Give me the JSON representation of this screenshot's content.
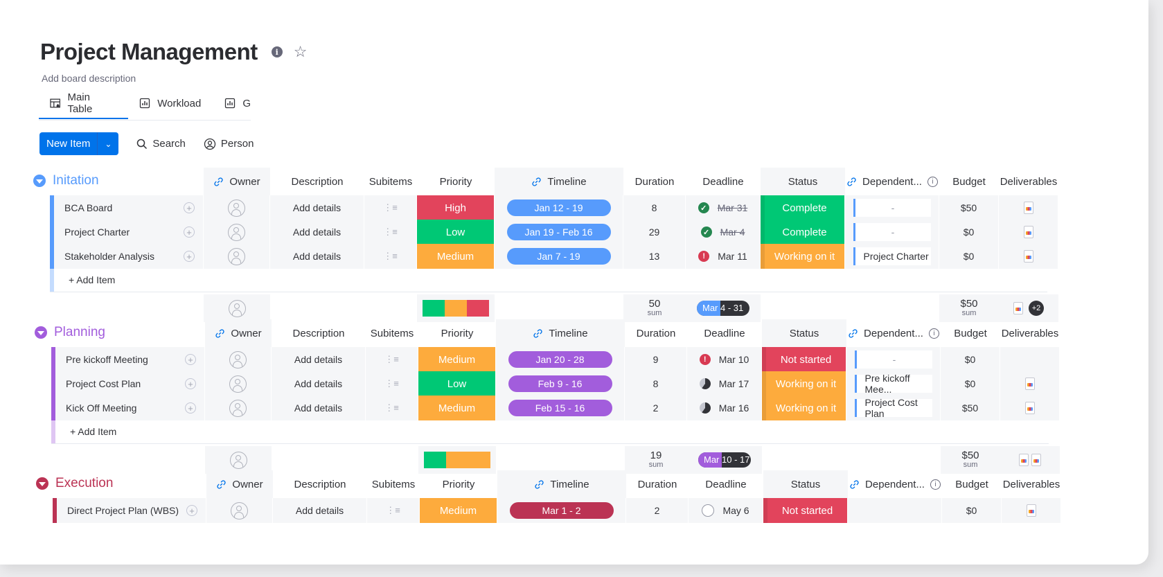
{
  "board": {
    "title": "Project Management",
    "description": "Add board description"
  },
  "tabs": [
    {
      "label": "Main Table"
    },
    {
      "label": "Workload"
    },
    {
      "label": "G"
    }
  ],
  "toolbar": {
    "new_item": "New Item",
    "search": "Search",
    "person": "Person"
  },
  "columns": {
    "owner": "Owner",
    "description": "Description",
    "subitems": "Subitems",
    "priority": "Priority",
    "timeline": "Timeline",
    "duration": "Duration",
    "deadline": "Deadline",
    "status": "Status",
    "dependent": "Dependent...",
    "budget": "Budget",
    "deliverables": "Deliverables"
  },
  "colors": {
    "high": "#e2445c",
    "low": "#00c875",
    "medium": "#fdab3d",
    "complete": "#00c875",
    "working": "#fdab3d",
    "not_started": "#e2445c",
    "initiation": "#579bfc",
    "planning": "#a25ddc",
    "execution": "#bb3354"
  },
  "add_item": "+ Add Item",
  "sum_label": "sum",
  "groups": [
    {
      "name": "Initation",
      "rows": [
        {
          "name": "BCA Board",
          "desc": "Add details",
          "priority": "High",
          "timeline": "Jan 12 - 19",
          "duration": "8",
          "deadline": "Mar 31",
          "status": "Complete",
          "dependent": "-",
          "budget": "$50"
        },
        {
          "name": "Project Charter",
          "desc": "Add details",
          "priority": "Low",
          "timeline": "Jan 19 - Feb 16",
          "duration": "29",
          "deadline": "Mar 4",
          "status": "Complete",
          "dependent": "-",
          "budget": "$0"
        },
        {
          "name": "Stakeholder Analysis",
          "desc": "Add details",
          "priority": "Medium",
          "timeline": "Jan 7 - 19",
          "duration": "13",
          "deadline": "Mar 11",
          "status": "Working on it",
          "dependent": "Project Charter",
          "budget": "$0"
        }
      ],
      "summary": {
        "duration": "50",
        "timeline": "Mar 4 - 31",
        "budget": "$50",
        "deliverables_more": "+2"
      }
    },
    {
      "name": "Planning",
      "rows": [
        {
          "name": "Pre kickoff Meeting",
          "desc": "Add details",
          "priority": "Medium",
          "timeline": "Jan 20 - 28",
          "duration": "9",
          "deadline": "Mar 10",
          "status": "Not started",
          "dependent": "-",
          "budget": "$0"
        },
        {
          "name": "Project Cost Plan",
          "desc": "Add details",
          "priority": "Low",
          "timeline": "Feb 9 - 16",
          "duration": "8",
          "deadline": "Mar 17",
          "status": "Working on it",
          "dependent": "Pre kickoff Mee...",
          "budget": "$0"
        },
        {
          "name": "Kick Off Meeting",
          "desc": "Add details",
          "priority": "Medium",
          "timeline": "Feb 15 - 16",
          "duration": "2",
          "deadline": "Mar 16",
          "status": "Working on it",
          "dependent": "Project Cost Plan",
          "budget": "$50"
        }
      ],
      "summary": {
        "duration": "19",
        "timeline": "Mar 10 - 17",
        "budget": "$50"
      }
    },
    {
      "name": "Execution",
      "rows": [
        {
          "name": "Direct Project Plan (WBS)",
          "desc": "Add details",
          "priority": "Medium",
          "timeline": "Mar 1 - 2",
          "duration": "2",
          "deadline": "May 6",
          "status": "Not started",
          "dependent": "",
          "budget": "$0"
        }
      ]
    }
  ]
}
